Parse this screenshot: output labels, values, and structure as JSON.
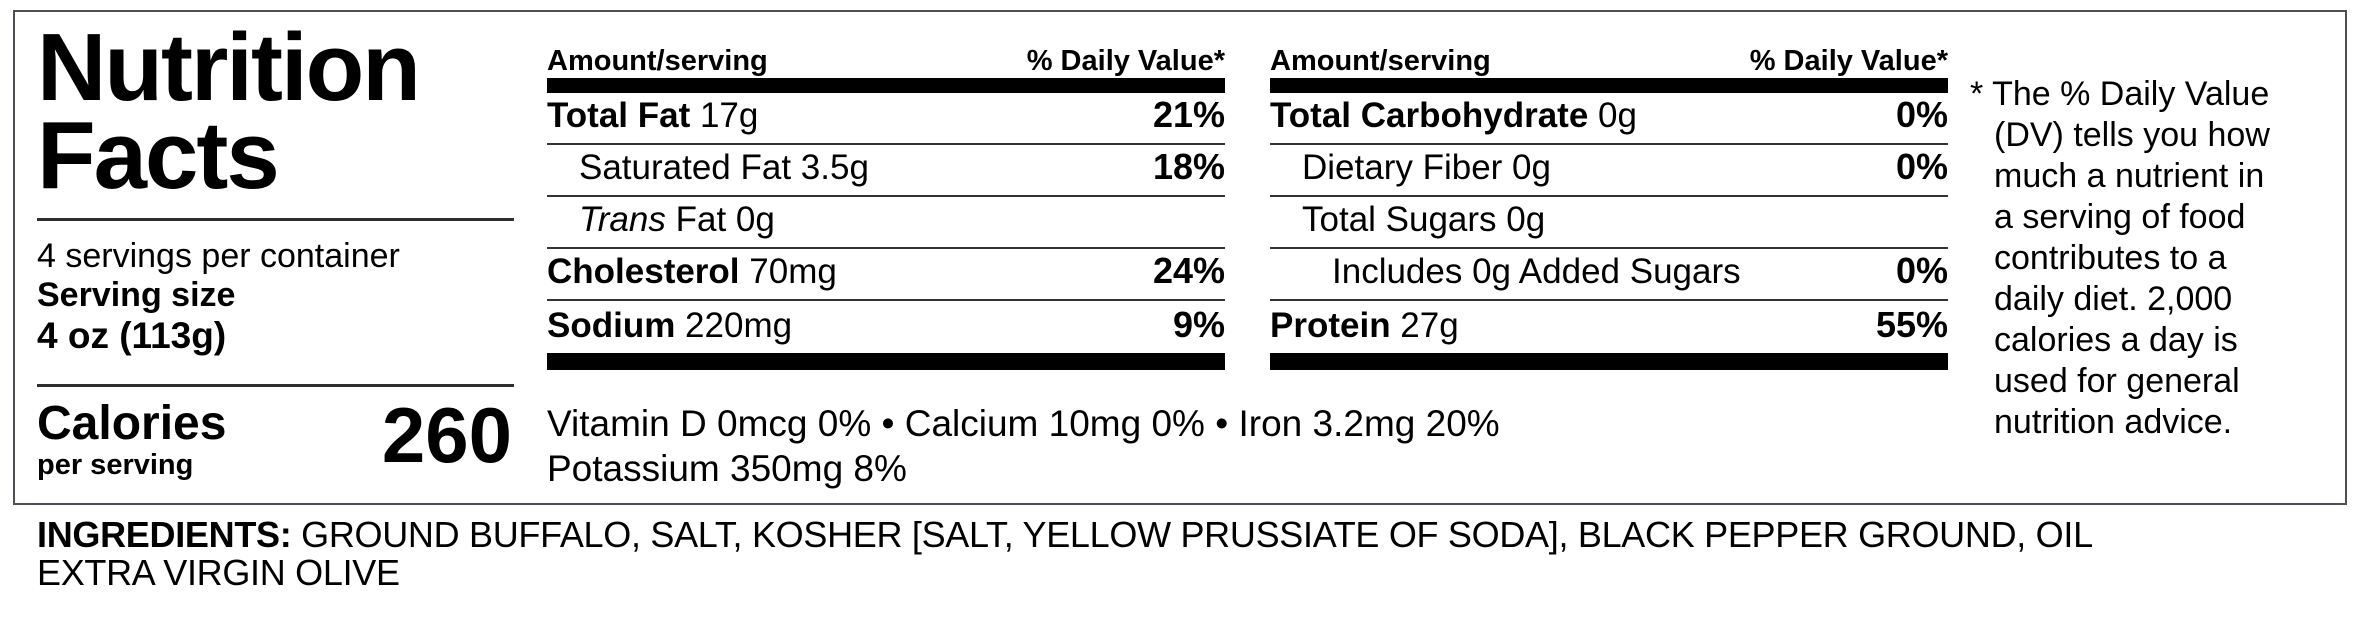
{
  "label": {
    "title_line1": "Nutrition",
    "title_line2": "Facts",
    "servings_per_container": "4 servings per container",
    "serving_size_label": "Serving size",
    "serving_size_value": "4 oz (113g)",
    "calories_label": "Calories",
    "calories_sub": "per serving",
    "calories_value": "260"
  },
  "columns": [
    {
      "header_left": "Amount/serving",
      "header_right": "% Daily Value*",
      "rows": [
        {
          "segments": [
            {
              "t": "Total Fat",
              "s": "b"
            },
            {
              "t": " 17g",
              "s": "r"
            }
          ],
          "dv": "21%",
          "indent": 0
        },
        {
          "segments": [
            {
              "t": "Saturated Fat 3.5g",
              "s": "r"
            }
          ],
          "dv": "18%",
          "indent": 1
        },
        {
          "segments": [
            {
              "t": "Trans",
              "s": "i"
            },
            {
              "t": " Fat 0g",
              "s": "r"
            }
          ],
          "dv": "",
          "indent": 1
        },
        {
          "segments": [
            {
              "t": "Cholesterol",
              "s": "b"
            },
            {
              "t": " 70mg",
              "s": "r"
            }
          ],
          "dv": "24%",
          "indent": 0
        },
        {
          "segments": [
            {
              "t": "Sodium",
              "s": "b"
            },
            {
              "t": " 220mg",
              "s": "r"
            }
          ],
          "dv": "9%",
          "indent": 0
        }
      ]
    },
    {
      "header_left": "Amount/serving",
      "header_right": "% Daily Value*",
      "rows": [
        {
          "segments": [
            {
              "t": "Total Carbohydrate",
              "s": "b"
            },
            {
              "t": " 0g",
              "s": "r"
            }
          ],
          "dv": "0%",
          "indent": 0
        },
        {
          "segments": [
            {
              "t": "Dietary Fiber 0g",
              "s": "r"
            }
          ],
          "dv": "0%",
          "indent": 1
        },
        {
          "segments": [
            {
              "t": "Total Sugars 0g",
              "s": "r"
            }
          ],
          "dv": "",
          "indent": 1
        },
        {
          "segments": [
            {
              "t": "Includes 0g Added Sugars",
              "s": "r"
            }
          ],
          "dv": "0%",
          "indent": 2
        },
        {
          "segments": [
            {
              "t": "Protein",
              "s": "b"
            },
            {
              "t": " 27g",
              "s": "r"
            }
          ],
          "dv": "55%",
          "indent": 0
        }
      ]
    }
  ],
  "micronutrients": {
    "line1": "Vitamin D 0mcg 0% • Calcium 10mg 0% • Iron 3.2mg 20%",
    "line2": "Potassium 350mg 8%"
  },
  "footnote": {
    "lines": [
      "* The % Daily Value",
      "(DV) tells you how",
      "much a nutrient in",
      "a serving of food",
      "contributes to a",
      "daily diet. 2,000",
      "calories a day is",
      "used for general",
      "nutrition advice."
    ]
  },
  "ingredients": {
    "label": "INGREDIENTS:",
    "text": "GROUND BUFFALO, SALT, KOSHER [SALT, YELLOW PRUSSIATE OF SODA], BLACK PEPPER GROUND, OIL EXTRA VIRGIN OLIVE"
  }
}
